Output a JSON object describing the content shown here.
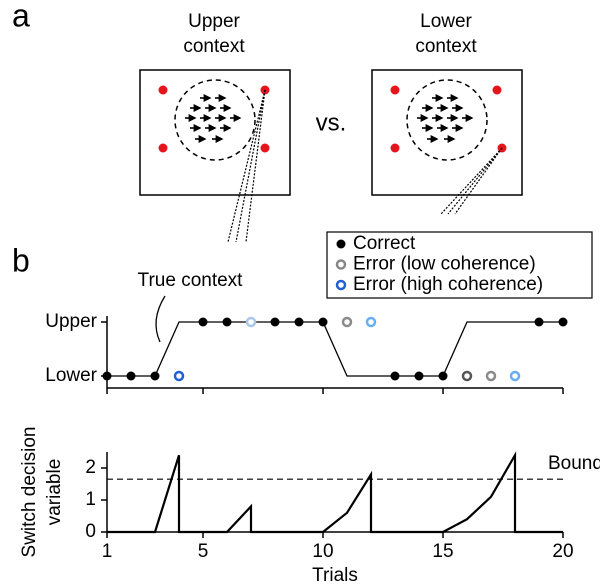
{
  "panel_labels": [
    "a",
    "b"
  ],
  "diagram": {
    "left_title": [
      "Upper",
      "context"
    ],
    "right_title": [
      "Lower",
      "context"
    ],
    "separator": "vs."
  },
  "chart_data": [
    {
      "type": "scatter",
      "annotation": "True context",
      "categories": [
        "Lower",
        "Upper"
      ],
      "true_context": {
        "x": [
          1,
          2,
          3,
          4,
          5,
          6,
          7,
          8,
          9,
          10,
          11,
          12,
          13,
          14,
          15,
          16,
          17,
          18,
          19,
          20
        ],
        "values": [
          "Lower",
          "Lower",
          "Lower",
          "Upper",
          "Upper",
          "Upper",
          "Upper",
          "Upper",
          "Upper",
          "Upper",
          "Lower",
          "Lower",
          "Lower",
          "Lower",
          "Lower",
          "Upper",
          "Upper",
          "Upper",
          "Upper",
          "Upper"
        ],
        "color": "#000000"
      },
      "series": [
        {
          "name": "Correct",
          "color": "#000000",
          "filled": true,
          "x": [
            1,
            2,
            3,
            5,
            6,
            8,
            9,
            10,
            13,
            14,
            15,
            19,
            20
          ],
          "values": [
            "Lower",
            "Lower",
            "Lower",
            "Upper",
            "Upper",
            "Upper",
            "Upper",
            "Upper",
            "Lower",
            "Lower",
            "Lower",
            "Upper",
            "Upper"
          ]
        },
        {
          "name": "Error (low coherence)",
          "color": "#888888",
          "filled": false,
          "x": [
            11,
            16,
            17
          ],
          "values": [
            "Upper",
            "Lower",
            "Lower"
          ],
          "colors": [
            "#8a8a8a",
            "#555555",
            "#8a8a8a"
          ]
        },
        {
          "name": "Error (high coherence)",
          "color": "#1f5fd6",
          "filled": false,
          "x": [
            4,
            7,
            12,
            18
          ],
          "values": [
            "Lower",
            "Upper",
            "Upper",
            "Lower"
          ],
          "colors": [
            "#1f5fd6",
            "#a9c8e8",
            "#6aaef0",
            "#6aaef0"
          ]
        }
      ],
      "xlim": [
        1,
        20
      ],
      "xticks": [
        1,
        5,
        10,
        15,
        20
      ]
    },
    {
      "type": "line",
      "xlabel": "Trials",
      "ylabel": [
        "Switch decision",
        "variable"
      ],
      "x": [
        1,
        2,
        3,
        4,
        4,
        5,
        6,
        7,
        7,
        8,
        9,
        10,
        11,
        12,
        12,
        13,
        14,
        15,
        16,
        17,
        18,
        18,
        19,
        20
      ],
      "values": [
        0,
        0,
        0,
        2.4,
        0,
        0,
        0,
        0.8,
        0,
        0,
        0,
        0,
        0.6,
        1.8,
        0,
        0,
        0,
        0,
        0.4,
        1.1,
        2.4,
        0,
        0,
        0
      ],
      "color": "#000000",
      "bound": 1.65,
      "bound_label": "Bound",
      "xlim": [
        1,
        20
      ],
      "ylim": [
        0,
        2.5
      ],
      "xticks": [
        1,
        5,
        10,
        15,
        20
      ],
      "yticks": [
        0,
        1,
        2
      ]
    }
  ]
}
